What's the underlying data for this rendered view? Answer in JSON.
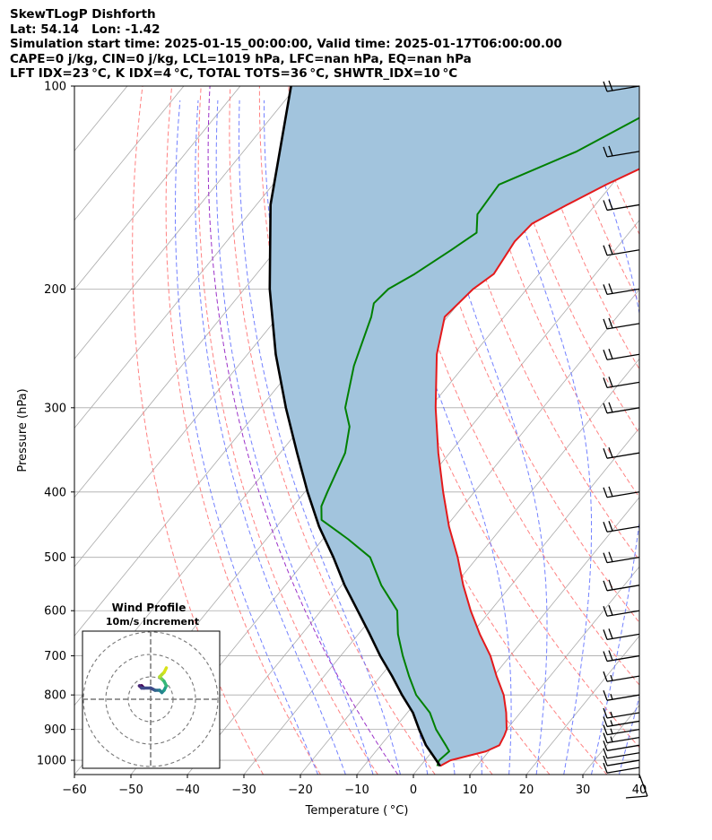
{
  "header": {
    "line1": "SkewTLogP Dishforth",
    "line2": "Lat: 54.14   Lon: -1.42",
    "line3": "Simulation start time: 2025-01-15_00:00:00, Valid time: 2025-01-17T06:00:00.00",
    "line4": "CAPE=0 j/kg, CIN=0 j/kg, LCL=1019 hPa, LFC=nan hPa, EQ=nan hPa",
    "line5": "LFT IDX=23 °C, K IDX=4 °C, TOTAL TOTS=36 °C, SHWTR_IDX=10 °C"
  },
  "chart_data": {
    "type": "line",
    "subtype": "skew-T log-P",
    "xlabel": "Temperature ( °C)",
    "ylabel": "Pressure (hPa)",
    "xlim": [
      -60,
      40
    ],
    "ylim": [
      1050,
      100
    ],
    "y_scale": "log",
    "grid": true,
    "x_ticks": [
      "−60",
      "−50",
      "−40",
      "−30",
      "−20",
      "−10",
      "0",
      "10",
      "20",
      "30",
      "40"
    ],
    "y_ticks": [
      "100",
      "200",
      "300",
      "400",
      "500",
      "600",
      "700",
      "800",
      "900",
      "1000"
    ],
    "colors": {
      "temperature": "#e41a1c",
      "dewpoint": "#008000",
      "parcel": "#000000",
      "fill": "#a2c4dd",
      "dry_adiabat": "#ff6b6b",
      "moist_adiabat": "#5a6bff",
      "isotherm": "#aaaaaa"
    },
    "series": [
      {
        "key": "temperature",
        "pressure": [
          1020,
          1000,
          970,
          950,
          920,
          900,
          850,
          800,
          750,
          700,
          650,
          600,
          550,
          500,
          450,
          400,
          350,
          300,
          250,
          220,
          200,
          190,
          170,
          160,
          150,
          140,
          130,
          120,
          110,
          100
        ],
        "temperature": [
          3.5,
          4.5,
          9.5,
          11.0,
          10.5,
          10.0,
          7.5,
          4.5,
          0.5,
          -3.5,
          -8.5,
          -13.5,
          -18.5,
          -23.5,
          -29.5,
          -35.5,
          -42.0,
          -49.0,
          -56.5,
          -60.5,
          -59.5,
          -58.0,
          -59.0,
          -58.5,
          -55.0,
          -51.0,
          -46.0,
          -42.0,
          -37.0,
          -33.5
        ]
      },
      {
        "key": "dewpoint",
        "pressure": [
          1020,
          1000,
          970,
          950,
          900,
          850,
          800,
          750,
          700,
          650,
          600,
          550,
          500,
          470,
          440,
          420,
          400,
          350,
          320,
          300,
          260,
          220,
          210,
          200,
          190,
          175,
          165,
          155,
          140,
          125,
          110,
          100
        ],
        "temperature": [
          3.0,
          2.5,
          3.0,
          1.5,
          -2.5,
          -6.0,
          -11.0,
          -15.0,
          -19.0,
          -23.0,
          -26.5,
          -33.0,
          -39.0,
          -45.5,
          -53.0,
          -55.0,
          -56.0,
          -58.5,
          -61.5,
          -65.0,
          -69.5,
          -73.5,
          -75.0,
          -74.5,
          -72.0,
          -69.0,
          -67.0,
          -69.5,
          -70.0,
          -61.0,
          -54.0,
          -49.0
        ]
      },
      {
        "key": "parcel",
        "pressure": [
          1020,
          1000,
          950,
          900,
          850,
          800,
          750,
          700,
          650,
          600,
          550,
          500,
          450,
          400,
          350,
          300,
          250,
          200,
          150,
          100
        ],
        "temperature": [
          3.5,
          2.0,
          -2.0,
          -5.5,
          -9.0,
          -13.5,
          -18.0,
          -23.0,
          -28.0,
          -33.5,
          -39.5,
          -45.5,
          -52.5,
          -59.5,
          -67.0,
          -75.5,
          -85.0,
          -95.5,
          -107.5,
          -121.0
        ]
      }
    ],
    "wind_barbs": {
      "pressure": [
        100,
        125,
        150,
        175,
        200,
        225,
        250,
        275,
        300,
        350,
        400,
        450,
        500,
        550,
        600,
        650,
        700,
        750,
        800,
        850,
        875,
        900,
        925,
        950,
        975,
        1000,
        1025
      ],
      "speed_kt": [
        40,
        45,
        45,
        45,
        50,
        45,
        45,
        40,
        40,
        35,
        35,
        30,
        30,
        25,
        25,
        20,
        20,
        15,
        15,
        15,
        15,
        15,
        15,
        10,
        10,
        10,
        10
      ]
    },
    "wind_profile_inset": {
      "title": "Wind Profile",
      "subtitle": "10m/s increment",
      "u": [
        -3,
        -4,
        -5,
        -4,
        0,
        2,
        4,
        5,
        6,
        7,
        6,
        5,
        4,
        5,
        6,
        7
      ],
      "v": [
        5,
        6,
        6,
        5,
        5,
        4,
        4,
        3,
        4,
        6,
        8,
        9,
        10,
        11,
        12,
        14
      ]
    }
  }
}
